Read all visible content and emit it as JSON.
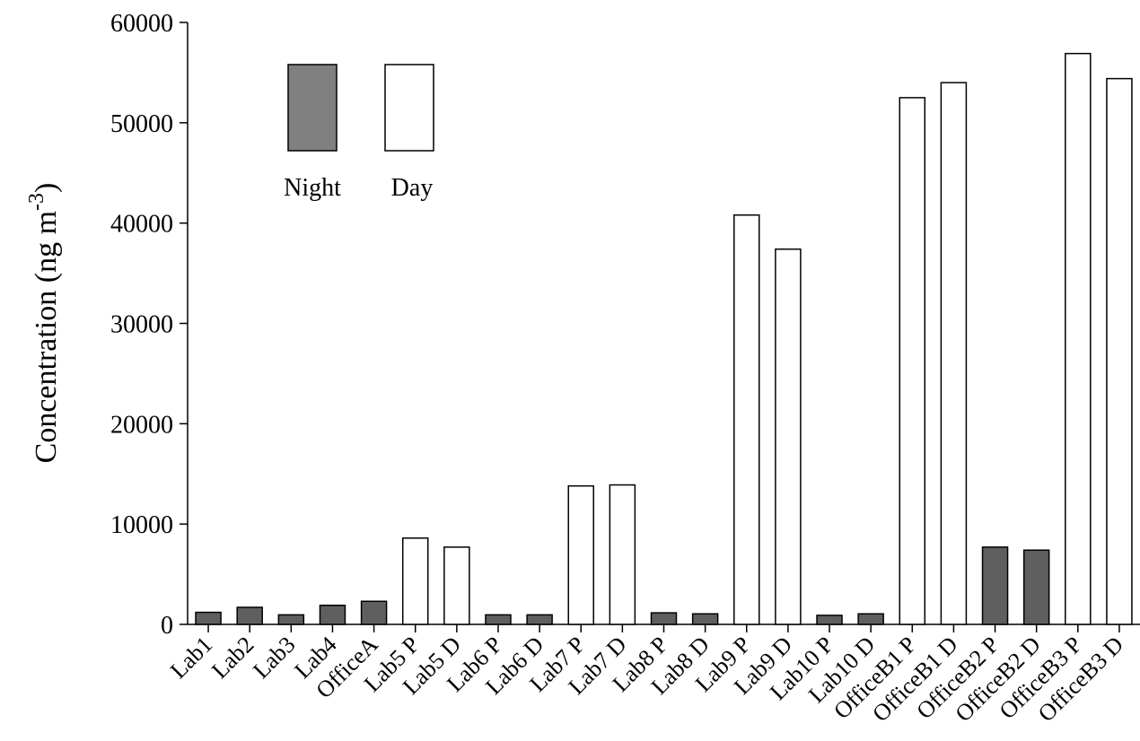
{
  "chart_data": {
    "type": "bar",
    "ylabel": "Concentration (ng m",
    "ylabel_sup": "-3",
    "ylabel_close": ")",
    "ylim": [
      0,
      60000
    ],
    "yticks": [
      0,
      10000,
      20000,
      30000,
      40000,
      50000,
      60000
    ],
    "grid": false,
    "legend": {
      "placement": "top-left",
      "entries": [
        {
          "name": "Night",
          "color": "#808080"
        },
        {
          "name": "Day",
          "color": "#ffffff"
        }
      ]
    },
    "colors": {
      "night_bar": "#5f5f5f",
      "day_bar": "#ffffff",
      "outline": "#000000"
    },
    "categories": [
      "Lab1",
      "Lab2",
      "Lab3",
      "Lab4",
      "OfficeA",
      "Lab5 P",
      "Lab5 D",
      "Lab6 P",
      "Lab6 D",
      "Lab7 P",
      "Lab7 D",
      "Lab8 P",
      "Lab8 D",
      "Lab9 P",
      "Lab9 D",
      "Lab10 P",
      "Lab10 D",
      "OfficeB1 P",
      "OfficeB1 D",
      "OfficeB2 P",
      "OfficeB2 D",
      "OfficeB3 P",
      "OfficeB3 D"
    ],
    "values": [
      1200,
      1700,
      950,
      1900,
      2300,
      8600,
      7700,
      950,
      950,
      13800,
      13900,
      1150,
      1050,
      40800,
      37400,
      900,
      1050,
      52500,
      54000,
      7700,
      7400,
      56900,
      54400
    ],
    "period": [
      "Night",
      "Night",
      "Night",
      "Night",
      "Night",
      "Day",
      "Day",
      "Night",
      "Night",
      "Day",
      "Day",
      "Night",
      "Night",
      "Day",
      "Day",
      "Night",
      "Night",
      "Day",
      "Day",
      "Night",
      "Night",
      "Day",
      "Day"
    ]
  }
}
